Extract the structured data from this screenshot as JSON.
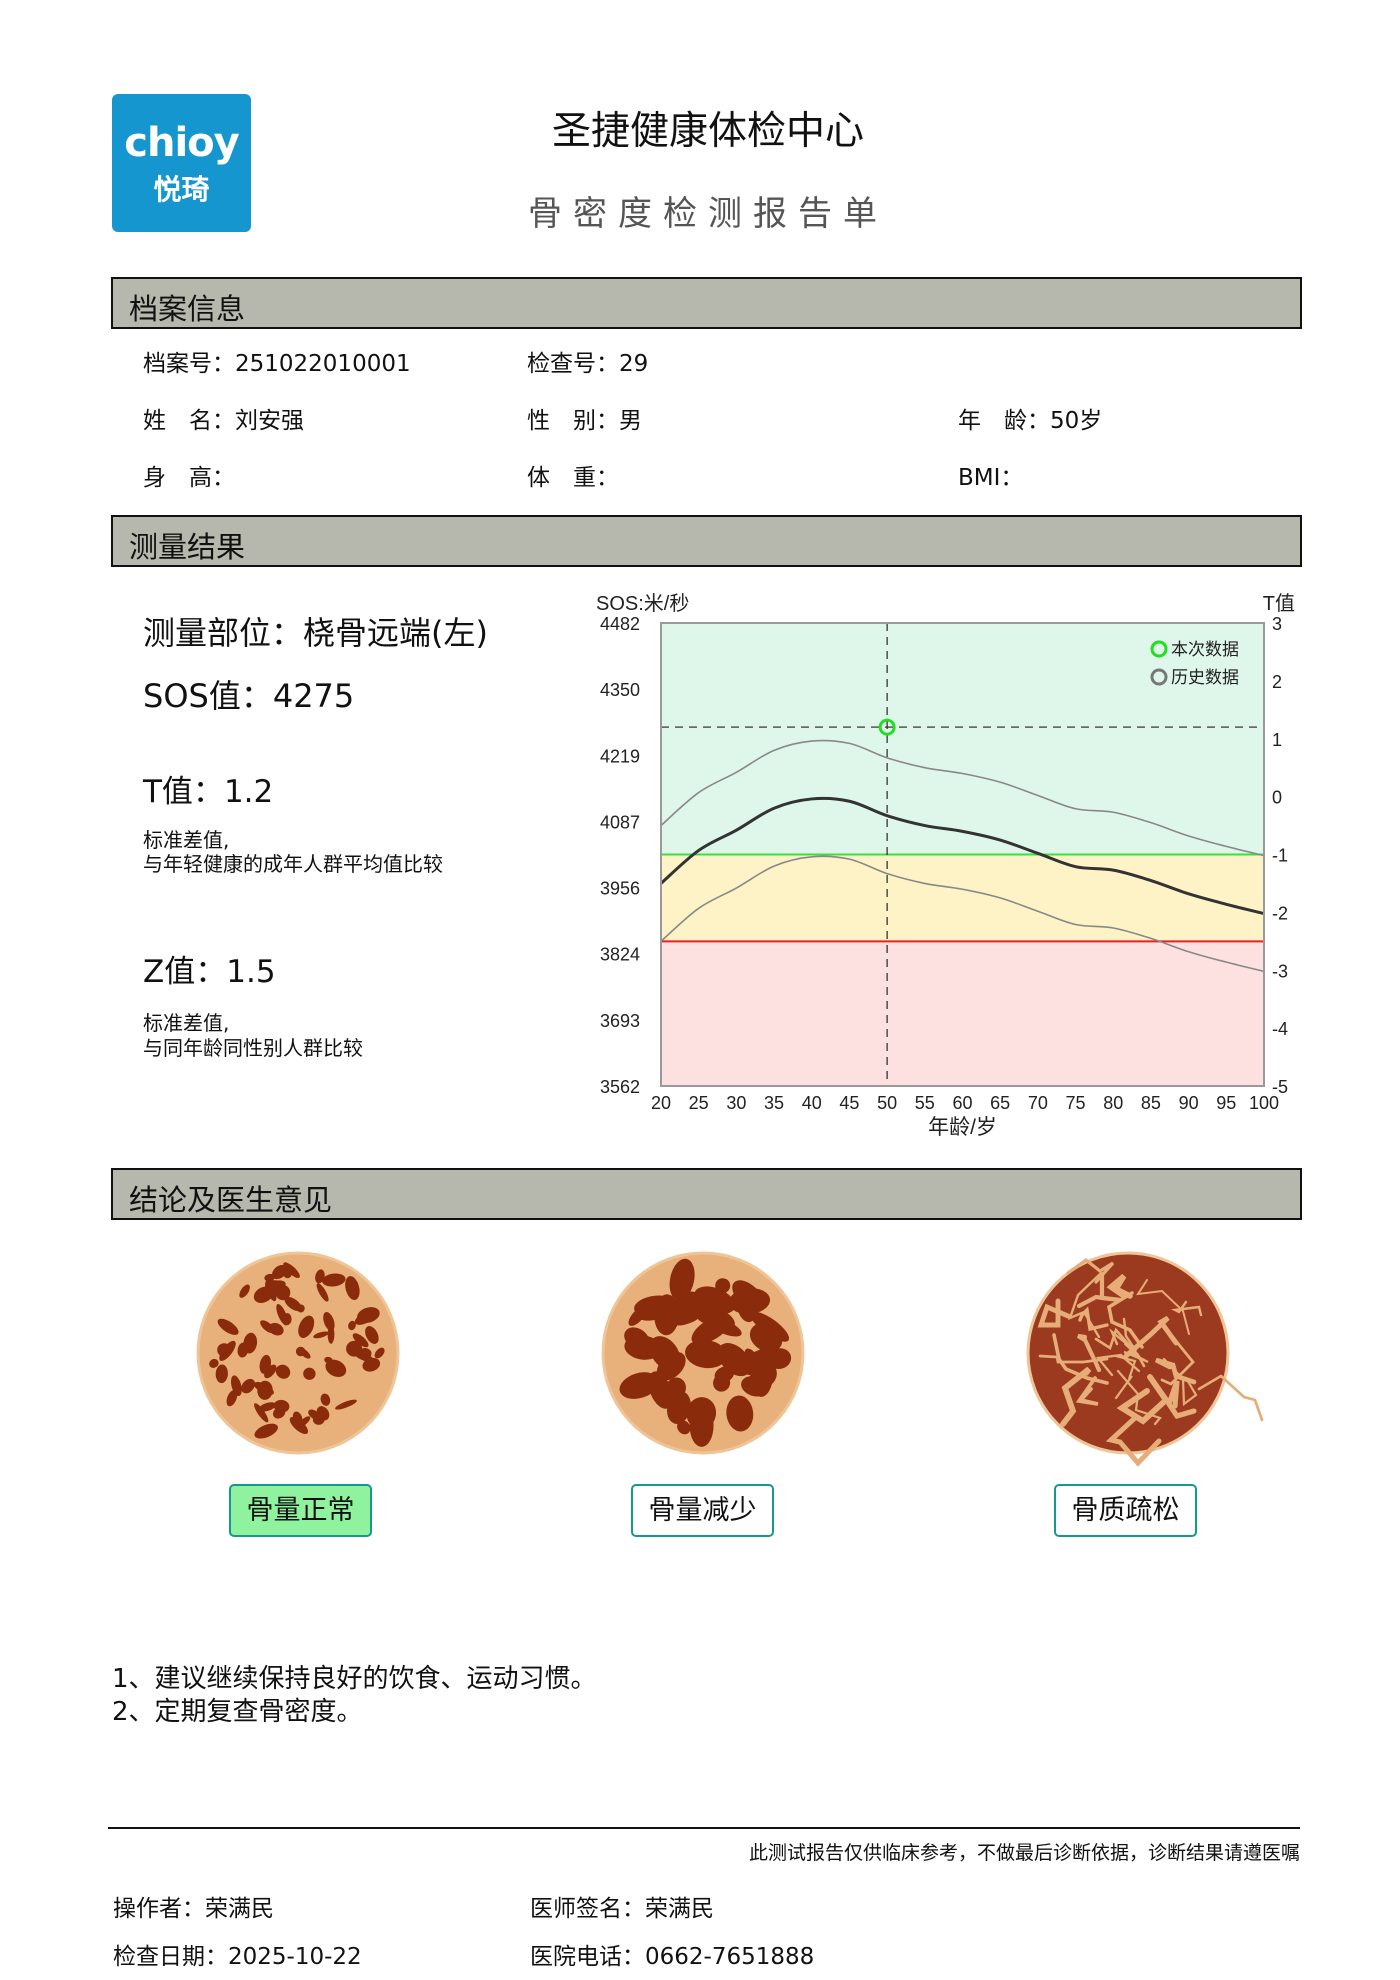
{
  "header": {
    "logo_en": "chioy",
    "logo_cn": "悦琦",
    "title": "圣捷健康体检中心",
    "subtitle": "骨密度检测报告单"
  },
  "sections": {
    "profile": "档案信息",
    "results": "测量结果",
    "conclusion": "结论及医生意见"
  },
  "profile": {
    "file_no_label": "档案号：",
    "file_no": "251022010001",
    "exam_no_label": "检查号：",
    "exam_no": "29",
    "name_label": "姓　名：",
    "name": "刘安强",
    "gender_label": "性　别：",
    "gender": "男",
    "age_label": "年　龄：",
    "age": "50岁",
    "height_label": "身　高：",
    "height": "",
    "weight_label": "体　重：",
    "weight": "",
    "bmi_label": "BMI：",
    "bmi": ""
  },
  "results": {
    "site_label": "测量部位：",
    "site": "桡骨远端(左)",
    "sos_label": "SOS值：",
    "sos": "4275",
    "t_label": "T值：",
    "t": "1.2",
    "t_desc1": "标准差值,",
    "t_desc2": "与年轻健康的成年人群平均值比较",
    "z_label": "Z值：",
    "z": "1.5",
    "z_desc1": "标准差值,",
    "z_desc2": "与同年龄同性别人群比较"
  },
  "chart_data": {
    "type": "line",
    "ylabel_left": "SOS:米/秒",
    "ylabel_right": "T值",
    "xlabel": "年龄/岁",
    "x_ticks": [
      "20",
      "25",
      "30",
      "35",
      "40",
      "45",
      "50",
      "55",
      "60",
      "65",
      "70",
      "75",
      "80",
      "85",
      "90",
      "95",
      "100"
    ],
    "y_left_ticks": [
      "4482",
      "4350",
      "4219",
      "4087",
      "3956",
      "3824",
      "3693",
      "3562"
    ],
    "y_right_ticks": [
      "3",
      "2",
      "1",
      "0",
      "-1",
      "-2",
      "-3",
      "-4",
      "-5"
    ],
    "xlim": [
      20,
      100
    ],
    "ylim_t": [
      -5,
      3
    ],
    "zones": [
      {
        "from": -1,
        "to": 3,
        "color": "#dff7ea"
      },
      {
        "from": -2.5,
        "to": -1,
        "color": "#fdf3c6"
      },
      {
        "from": -5,
        "to": -2.5,
        "color": "#fde0e0"
      }
    ],
    "threshold_lines": [
      {
        "t": -1,
        "color": "#3be03b"
      },
      {
        "t": -2.5,
        "color": "#e82020"
      }
    ],
    "x": [
      20,
      25,
      30,
      35,
      40,
      45,
      50,
      55,
      60,
      65,
      70,
      75,
      80,
      85,
      90,
      95,
      100
    ],
    "series": [
      {
        "role": "mean",
        "color": "#333333",
        "values": [
          -1.5,
          -0.93,
          -0.58,
          -0.2,
          -0.04,
          -0.08,
          -0.33,
          -0.5,
          -0.6,
          -0.75,
          -0.98,
          -1.21,
          -1.27,
          -1.45,
          -1.68,
          -1.86,
          -2.02
        ]
      },
      {
        "role": "upper",
        "color": "#888888",
        "values": [
          -0.5,
          0.07,
          0.42,
          0.8,
          0.96,
          0.92,
          0.67,
          0.5,
          0.4,
          0.25,
          0.02,
          -0.21,
          -0.27,
          -0.45,
          -0.68,
          -0.86,
          -1.02
        ]
      },
      {
        "role": "lower",
        "color": "#888888",
        "values": [
          -2.5,
          -1.93,
          -1.58,
          -1.2,
          -1.04,
          -1.08,
          -1.33,
          -1.5,
          -1.6,
          -1.75,
          -1.98,
          -2.21,
          -2.27,
          -2.45,
          -2.68,
          -2.86,
          -3.02
        ]
      }
    ],
    "current_point": {
      "age": 50,
      "t": 1.2,
      "color": "#22dd22"
    },
    "legend": [
      {
        "label": "本次数据",
        "color": "#22dd22"
      },
      {
        "label": "历史数据",
        "color": "#777777"
      }
    ],
    "legend_position": "top-right"
  },
  "conclusion": {
    "categories": [
      {
        "label": "骨量正常",
        "active": true
      },
      {
        "label": "骨量减少",
        "active": false
      },
      {
        "label": "骨质疏松",
        "active": false
      }
    ],
    "advice": [
      "1、建议继续保持良好的饮食、运动习惯。",
      "2、定期复查骨密度。"
    ]
  },
  "footer": {
    "disclaimer": "此测试报告仅供临床参考，不做最后诊断依据，诊断结果请遵医嘱",
    "operator_label": "操作者：",
    "operator": "荣满民",
    "doctor_label": "医师签名：",
    "doctor": "荣满民",
    "date_label": "检查日期：",
    "date": "2025-10-22",
    "phone_label": "医院电话：",
    "phone": "0662-7651888"
  }
}
